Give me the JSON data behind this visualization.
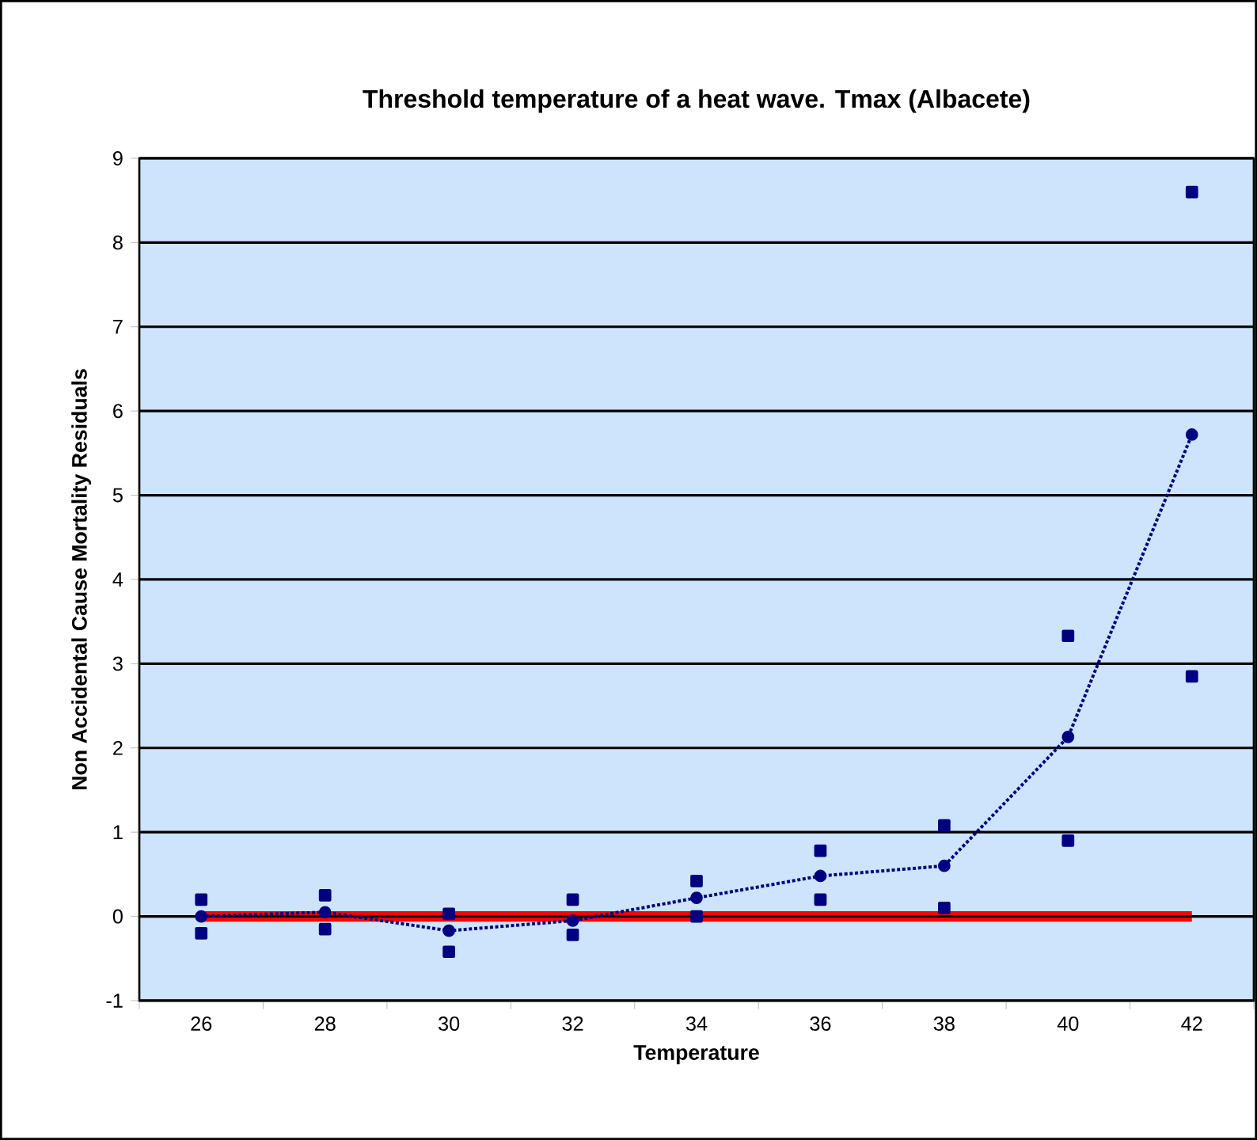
{
  "chart_data": {
    "type": "line",
    "title": "Threshold temperature of a heat wave. Tmax (Albacete)",
    "xlabel": "Temperature",
    "ylabel": "Non Accidental Cause Mortality Residuals",
    "categories": [
      "26",
      "28",
      "30",
      "32",
      "34",
      "36",
      "38",
      "40",
      "42"
    ],
    "series": [
      {
        "color": "#000080",
        "values": [
          0,
          0.05,
          -0.17,
          -0.05,
          0.22,
          0.48,
          0.6,
          2.13,
          5.72
        ]
      },
      {
        "type": "scatter",
        "marker": "square",
        "color": "#000080",
        "values": [
          0.2,
          0.25,
          0.03,
          0.2,
          0.42,
          0.78,
          1.08,
          3.33,
          8.6
        ]
      },
      {
        "type": "scatter",
        "marker": "square",
        "color": "#000080",
        "values": [
          -0.2,
          -0.15,
          -0.42,
          -0.22,
          0.0,
          0.2,
          0.1,
          0.9,
          2.85
        ]
      }
    ],
    "ylim": [
      -1,
      9
    ],
    "yticks": [
      -1,
      0,
      1,
      2,
      3,
      4,
      5,
      6,
      7,
      8,
      9
    ],
    "grid": "y",
    "marker": "circle",
    "line_style": "dotted",
    "ref_lines": [
      {
        "axis": "y",
        "value": 0,
        "color": "#ff0000"
      }
    ]
  }
}
